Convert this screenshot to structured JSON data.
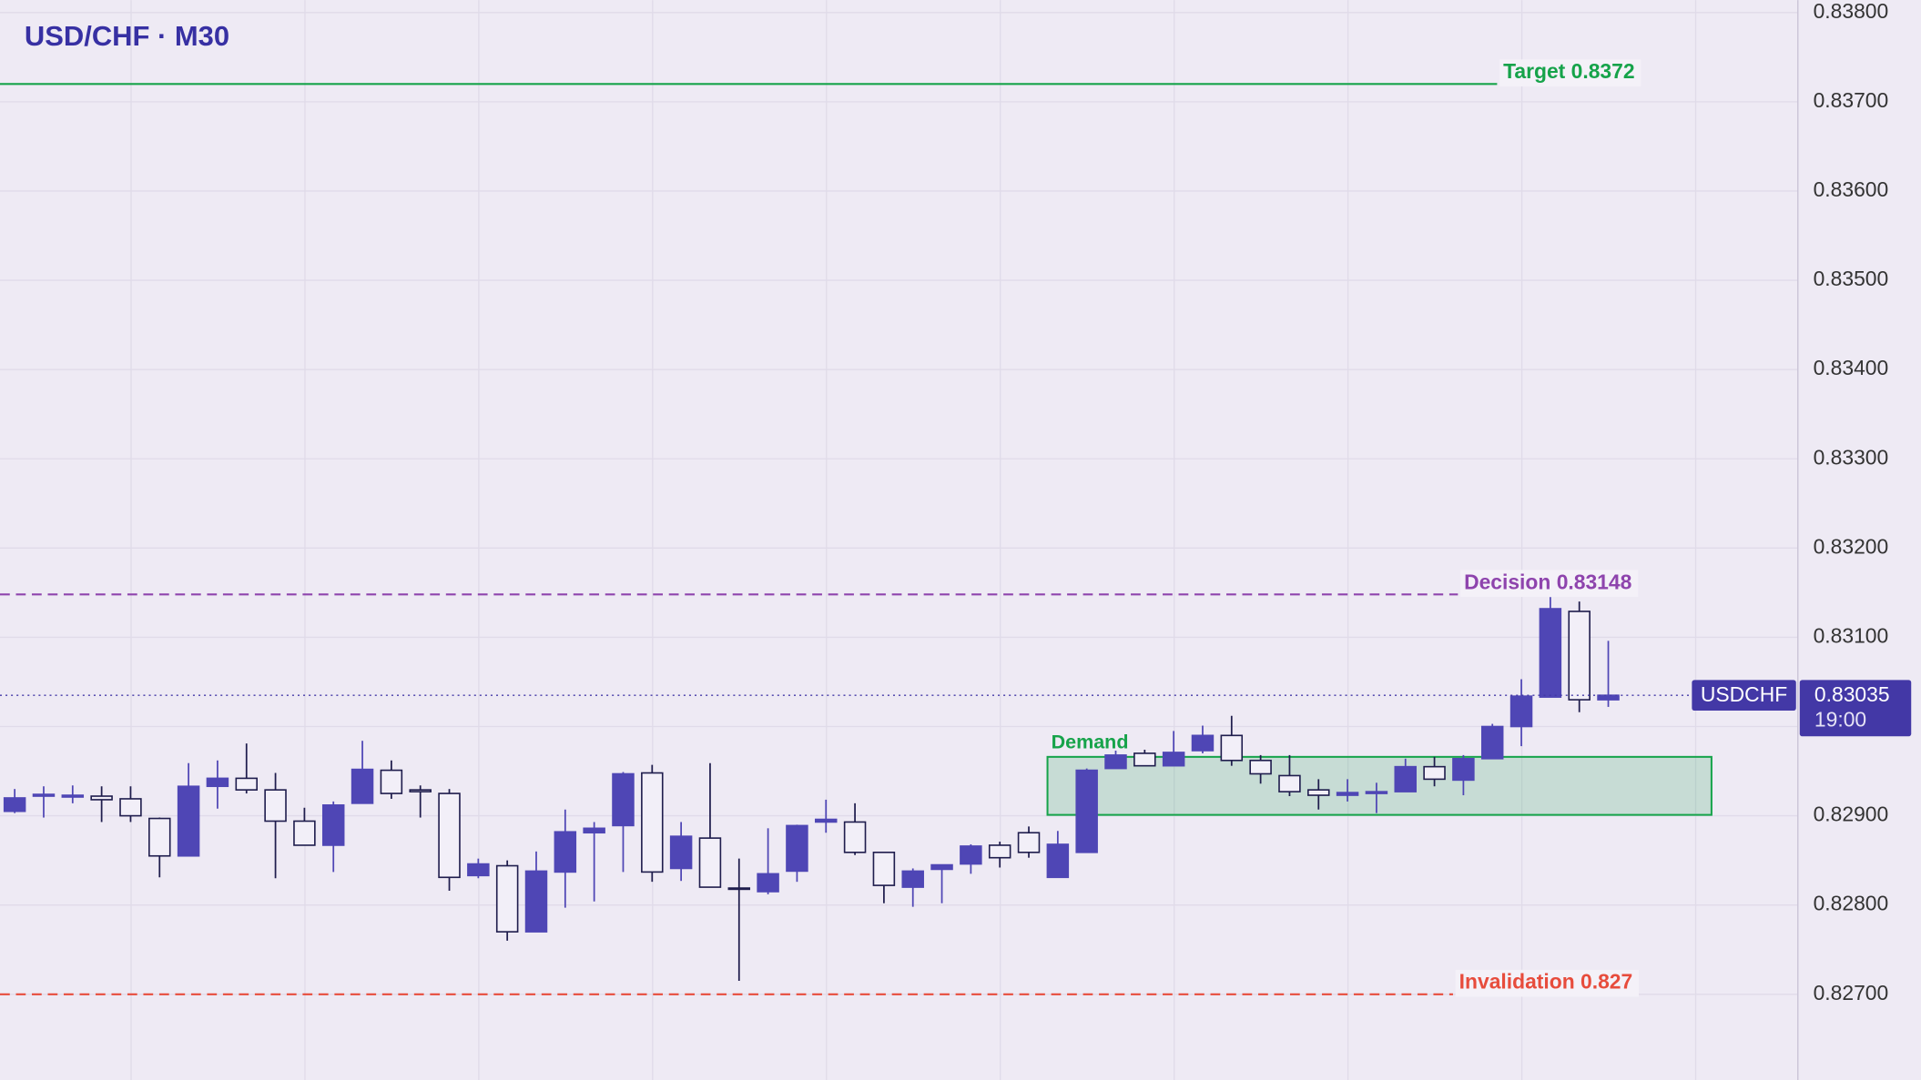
{
  "chart_data": {
    "type": "candlestick",
    "title": "USD/CHF · M30",
    "up_color": "#4f46b5",
    "down_color": "#f2eff8",
    "down_outline": "#1f1d4d",
    "grid": true,
    "ylim": [
      0.82604,
      0.83814
    ],
    "yticks": [
      {
        "value": 0.827,
        "label": "0.82700"
      },
      {
        "value": 0.828,
        "label": "0.82800"
      },
      {
        "value": 0.829,
        "label": "0.82900"
      },
      {
        "value": 0.83,
        "label": "0.83000"
      },
      {
        "value": 0.831,
        "label": "0.83100"
      },
      {
        "value": 0.832,
        "label": "0.83200"
      },
      {
        "value": 0.833,
        "label": "0.83300"
      },
      {
        "value": 0.834,
        "label": "0.83400"
      },
      {
        "value": 0.835,
        "label": "0.83500"
      },
      {
        "value": 0.836,
        "label": "0.83600"
      },
      {
        "value": 0.837,
        "label": "0.83700"
      },
      {
        "value": 0.838,
        "label": "0.83800"
      }
    ],
    "candles": {
      "open": [
        0.82905,
        0.82922,
        0.82921,
        0.82922,
        0.82919,
        0.82897,
        0.82855,
        0.82933,
        0.82942,
        0.82929,
        0.82894,
        0.82867,
        0.82914,
        0.82951,
        0.82929,
        0.82925,
        0.82833,
        0.82844,
        0.8277,
        0.82837,
        0.82881,
        0.82889,
        0.82948,
        0.82841,
        0.82875,
        0.82819,
        0.82815,
        0.82838,
        0.82893,
        0.82893,
        0.82859,
        0.8282,
        0.8284,
        0.82846,
        0.82867,
        0.82881,
        0.82831,
        0.82859,
        0.82953,
        0.8297,
        0.82956,
        0.82973,
        0.8299,
        0.82962,
        0.82945,
        0.82929,
        0.82923,
        0.82925,
        0.82927,
        0.82955,
        0.8294,
        0.82964,
        0.83,
        0.83033,
        0.83129,
        0.8303
      ],
      "high": [
        0.8293,
        0.82933,
        0.82934,
        0.82933,
        0.82933,
        0.82898,
        0.82959,
        0.82962,
        0.82981,
        0.82948,
        0.82909,
        0.82916,
        0.82984,
        0.82962,
        0.82934,
        0.8293,
        0.82852,
        0.8285,
        0.8286,
        0.82907,
        0.82893,
        0.82949,
        0.82957,
        0.82893,
        0.82959,
        0.82852,
        0.82886,
        0.8289,
        0.82918,
        0.82914,
        0.82859,
        0.82841,
        0.82845,
        0.82868,
        0.82871,
        0.82888,
        0.82883,
        0.82953,
        0.82973,
        0.82974,
        0.82995,
        0.83001,
        0.83012,
        0.82968,
        0.82968,
        0.82941,
        0.82941,
        0.82937,
        0.82964,
        0.82966,
        0.82968,
        0.83003,
        0.83053,
        0.83145,
        0.8314,
        0.83096
      ],
      "low": [
        0.82903,
        0.82898,
        0.82914,
        0.82893,
        0.82893,
        0.82831,
        0.82855,
        0.82908,
        0.82925,
        0.8283,
        0.82867,
        0.82837,
        0.82914,
        0.82919,
        0.82898,
        0.82816,
        0.8283,
        0.8276,
        0.8277,
        0.82797,
        0.82804,
        0.82837,
        0.82826,
        0.82827,
        0.8282,
        0.82715,
        0.82812,
        0.82826,
        0.82881,
        0.82856,
        0.82802,
        0.82798,
        0.82802,
        0.82835,
        0.82842,
        0.82853,
        0.82831,
        0.82859,
        0.82953,
        0.82956,
        0.82956,
        0.8297,
        0.82956,
        0.82936,
        0.82922,
        0.82907,
        0.82916,
        0.82903,
        0.82927,
        0.82933,
        0.82923,
        0.82964,
        0.82978,
        0.83033,
        0.83016,
        0.83022
      ],
      "close": [
        0.8292,
        0.82924,
        0.82923,
        0.82918,
        0.829,
        0.82855,
        0.82933,
        0.82942,
        0.82929,
        0.82894,
        0.82867,
        0.82912,
        0.82952,
        0.82925,
        0.82927,
        0.82831,
        0.82846,
        0.8277,
        0.82838,
        0.82882,
        0.82886,
        0.82947,
        0.82837,
        0.82877,
        0.8282,
        0.82818,
        0.82835,
        0.82889,
        0.82896,
        0.82859,
        0.82822,
        0.82838,
        0.82845,
        0.82866,
        0.82853,
        0.82859,
        0.82868,
        0.82951,
        0.82968,
        0.82956,
        0.82971,
        0.8299,
        0.82962,
        0.82947,
        0.82927,
        0.82923,
        0.82926,
        0.82927,
        0.82955,
        0.82941,
        0.82964,
        0.83,
        0.83034,
        0.83132,
        0.8303,
        0.83035
      ]
    },
    "levels": [
      {
        "label": "Target 0.8372",
        "value": 0.8372,
        "color": "#16a34a",
        "style": "solid"
      },
      {
        "label": "Decision 0.83148",
        "value": 0.83148,
        "color": "#8e44ad",
        "style": "dashed"
      },
      {
        "label": "Invalidation 0.827",
        "value": 0.827,
        "color": "#e74c3c",
        "style": "dashed"
      }
    ],
    "zone": {
      "label": "Demand",
      "top": 0.82966,
      "bottom": 0.82901,
      "color": "#16a34a"
    },
    "last_price": {
      "symbol": "USDCHF",
      "value": 0.83035,
      "countdown": "19:00",
      "color": "#4338a6"
    }
  }
}
